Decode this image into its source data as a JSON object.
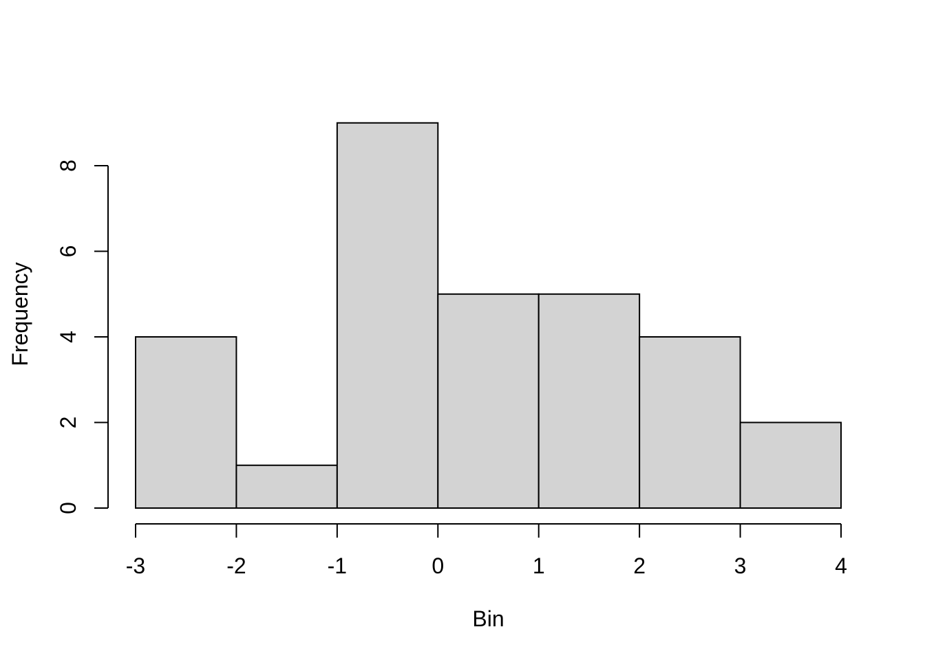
{
  "chart_data": {
    "type": "bar",
    "variant": "histogram",
    "xlabel": "Bin",
    "ylabel": "Frequency",
    "breaks": [
      -3,
      -2,
      -1,
      0,
      1,
      2,
      3,
      4
    ],
    "counts": [
      4,
      1,
      9,
      5,
      5,
      4,
      2
    ],
    "x_ticks": [
      -3,
      -2,
      -1,
      0,
      1,
      2,
      3,
      4
    ],
    "y_ticks": [
      0,
      2,
      4,
      6,
      8
    ],
    "xlim": [
      -3,
      4
    ],
    "ylim": [
      0,
      8
    ],
    "grid": false,
    "legend": "none",
    "colors": {
      "bar_fill": "#d3d3d3",
      "bar_border": "#000000",
      "axis": "#000000",
      "text": "#000000",
      "background": "#ffffff"
    }
  }
}
